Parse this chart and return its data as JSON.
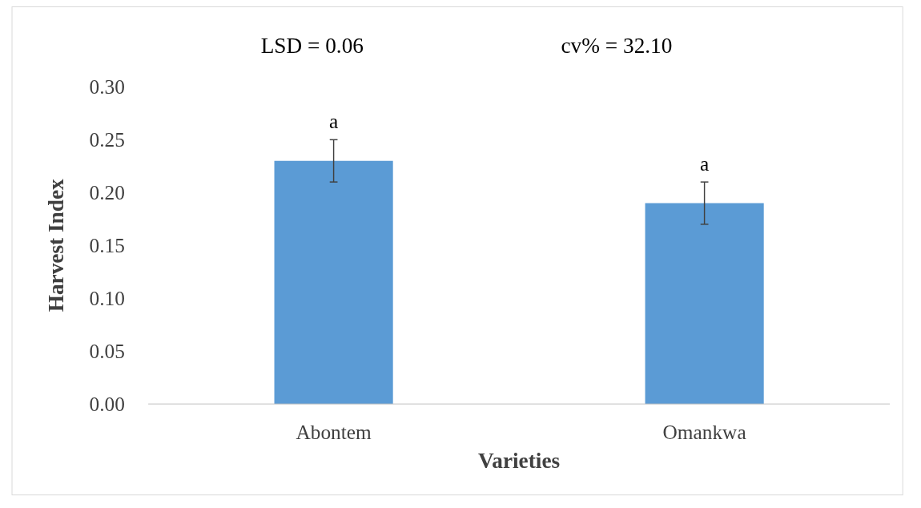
{
  "chart_data": {
    "type": "bar",
    "xlabel": "Varieties",
    "ylabel": "Harvest Index",
    "categories": [
      "Abontem",
      "Omankwa"
    ],
    "values": [
      0.23,
      0.19
    ],
    "errors": [
      0.02,
      0.02
    ],
    "color": "#5b9bd5",
    "ylim": [
      0,
      0.3
    ],
    "yticks": [
      {
        "value": 0,
        "label": "0.00"
      },
      {
        "value": 0.05,
        "label": "0.05"
      },
      {
        "value": 0.1,
        "label": "0.10"
      },
      {
        "value": 0.15,
        "label": "0.15"
      },
      {
        "value": 0.2,
        "label": "0.20"
      },
      {
        "value": 0.25,
        "label": "0.25"
      },
      {
        "value": 0.3,
        "label": "0.30"
      }
    ],
    "grid": false,
    "annotations": [
      "LSD = 0.06",
      "cv% = 32.10",
      "a",
      "a"
    ]
  }
}
